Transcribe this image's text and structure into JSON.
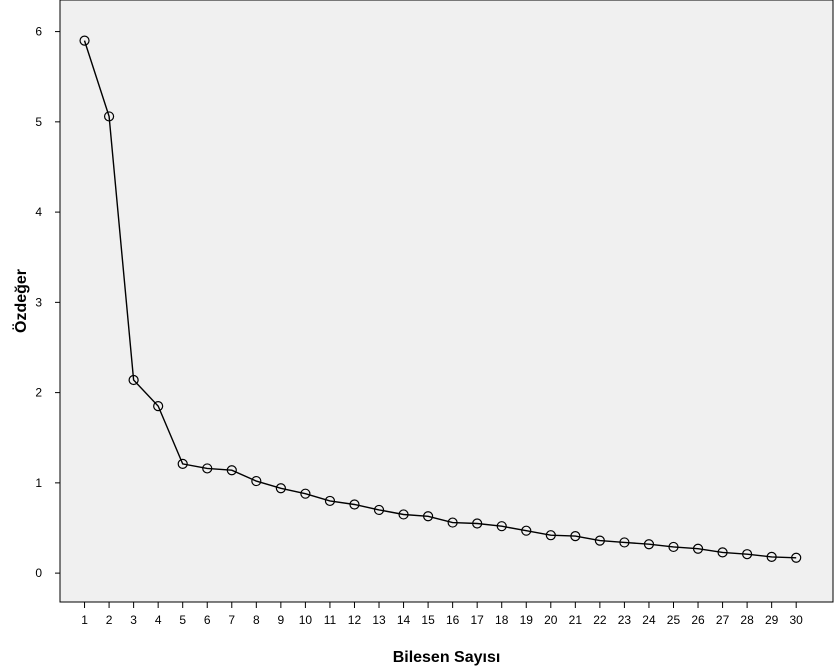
{
  "chart_data": {
    "type": "line",
    "title": "",
    "xlabel": "Bilesen Sayısı",
    "ylabel": "Özdeğer",
    "x": [
      1,
      2,
      3,
      4,
      5,
      6,
      7,
      8,
      9,
      10,
      11,
      12,
      13,
      14,
      15,
      16,
      17,
      18,
      19,
      20,
      21,
      22,
      23,
      24,
      25,
      26,
      27,
      28,
      29,
      30
    ],
    "y": [
      5.9,
      5.06,
      2.14,
      1.85,
      1.21,
      1.16,
      1.14,
      1.02,
      0.94,
      0.88,
      0.8,
      0.76,
      0.7,
      0.65,
      0.63,
      0.56,
      0.55,
      0.52,
      0.47,
      0.42,
      0.41,
      0.36,
      0.34,
      0.32,
      0.29,
      0.27,
      0.23,
      0.21,
      0.18,
      0.17
    ],
    "xlim": [
      0,
      31.5
    ],
    "ylim": [
      -0.32,
      6.35
    ],
    "yticks": [
      0,
      1,
      2,
      3,
      4,
      5,
      6
    ],
    "grid": false,
    "marker": "open-circle",
    "colors": {
      "line": "#000000",
      "plot_background": "#f0f0f0",
      "frame": "#000000"
    }
  }
}
